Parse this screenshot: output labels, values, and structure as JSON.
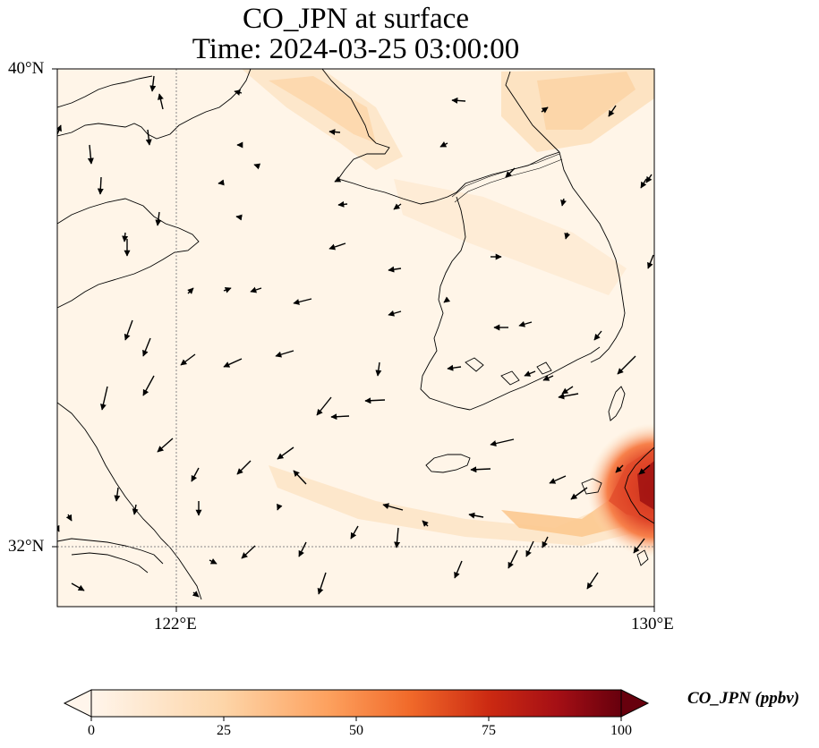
{
  "title": {
    "line1": "CO_JPN at surface",
    "line2": "Time: 2024-03-25 03:00:00"
  },
  "map": {
    "lon_range": [
      120,
      130
    ],
    "lat_range": [
      31,
      40
    ],
    "lat_ticks": [
      {
        "value": 40,
        "label": "40°N"
      },
      {
        "value": 32,
        "label": "32°N"
      }
    ],
    "lon_ticks": [
      {
        "value": 122,
        "label": "122°E"
      },
      {
        "value": 130,
        "label": "130°E"
      }
    ],
    "gridlines": [
      {
        "axis": "lon",
        "value": 122
      },
      {
        "axis": "lat",
        "value": 32
      }
    ],
    "wind_vectors": "black arrows showing near-surface wind, mostly westward/south-westward over sea, northeastward near Japan"
  },
  "colorbar": {
    "label": "CO_JPN (ppbv)",
    "ticks": [
      "0",
      "25",
      "50",
      "75",
      "100"
    ],
    "range": [
      0,
      100
    ],
    "extend": "both",
    "colors": [
      "#fff5eb",
      "#fdd0a2",
      "#fd8d3c",
      "#d94801",
      "#a50f15",
      "#67000d"
    ]
  },
  "colors": {
    "background_field": "#fff4e6",
    "plume_light": "#fde4c4",
    "plume_peak": "#8b0000"
  }
}
